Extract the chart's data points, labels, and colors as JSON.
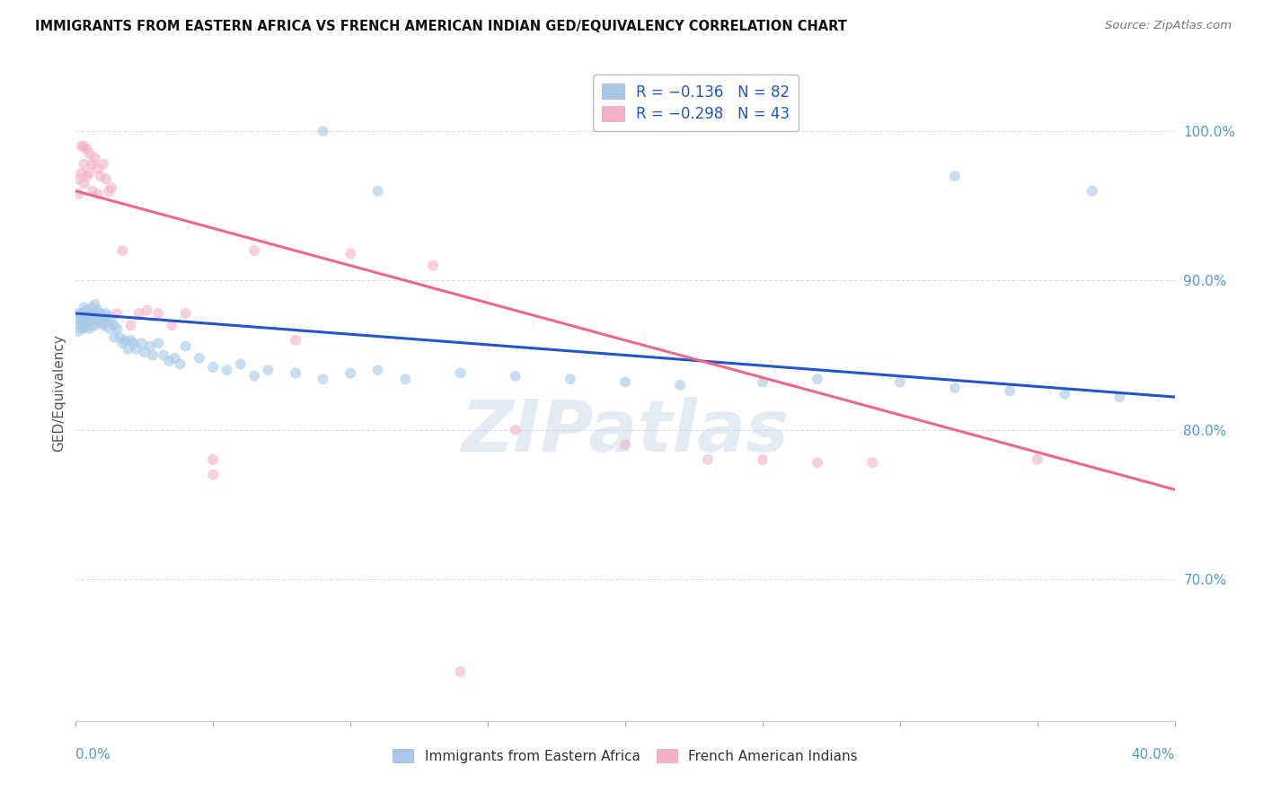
{
  "title": "IMMIGRANTS FROM EASTERN AFRICA VS FRENCH AMERICAN INDIAN GED/EQUIVALENCY CORRELATION CHART",
  "source": "Source: ZipAtlas.com",
  "ylabel": "GED/Equivalency",
  "ytick_values": [
    0.7,
    0.8,
    0.9,
    1.0
  ],
  "xlim": [
    0.0,
    0.4
  ],
  "ylim": [
    0.605,
    1.045
  ],
  "blue_color": "#a8c8e8",
  "pink_color": "#f4b0c8",
  "blue_line_color": "#2255cc",
  "pink_line_color": "#ee6688",
  "background_color": "#ffffff",
  "grid_color": "#ddddee",
  "blue_scatter_x": [
    0.001,
    0.001,
    0.001,
    0.001,
    0.002,
    0.002,
    0.002,
    0.002,
    0.003,
    0.003,
    0.003,
    0.003,
    0.004,
    0.004,
    0.004,
    0.005,
    0.005,
    0.005,
    0.006,
    0.006,
    0.006,
    0.007,
    0.007,
    0.007,
    0.008,
    0.008,
    0.009,
    0.009,
    0.01,
    0.01,
    0.011,
    0.011,
    0.012,
    0.012,
    0.013,
    0.014,
    0.014,
    0.015,
    0.016,
    0.017,
    0.018,
    0.019,
    0.02,
    0.021,
    0.022,
    0.024,
    0.025,
    0.027,
    0.028,
    0.03,
    0.032,
    0.034,
    0.036,
    0.038,
    0.04,
    0.045,
    0.05,
    0.055,
    0.06,
    0.065,
    0.07,
    0.08,
    0.09,
    0.1,
    0.11,
    0.12,
    0.14,
    0.16,
    0.18,
    0.2,
    0.22,
    0.25,
    0.27,
    0.3,
    0.32,
    0.34,
    0.36,
    0.38,
    0.32,
    0.37,
    0.09,
    0.11
  ],
  "blue_scatter_y": [
    0.878,
    0.874,
    0.87,
    0.866,
    0.878,
    0.876,
    0.872,
    0.868,
    0.882,
    0.876,
    0.872,
    0.868,
    0.88,
    0.876,
    0.87,
    0.878,
    0.874,
    0.868,
    0.882,
    0.876,
    0.87,
    0.884,
    0.878,
    0.87,
    0.88,
    0.874,
    0.878,
    0.872,
    0.876,
    0.87,
    0.878,
    0.872,
    0.876,
    0.868,
    0.874,
    0.87,
    0.862,
    0.868,
    0.862,
    0.858,
    0.86,
    0.854,
    0.86,
    0.858,
    0.854,
    0.858,
    0.852,
    0.856,
    0.85,
    0.858,
    0.85,
    0.846,
    0.848,
    0.844,
    0.856,
    0.848,
    0.842,
    0.84,
    0.844,
    0.836,
    0.84,
    0.838,
    0.834,
    0.838,
    0.84,
    0.834,
    0.838,
    0.836,
    0.834,
    0.832,
    0.83,
    0.832,
    0.834,
    0.832,
    0.828,
    0.826,
    0.824,
    0.822,
    0.97,
    0.96,
    1.0,
    0.96
  ],
  "pink_scatter_x": [
    0.001,
    0.001,
    0.002,
    0.002,
    0.003,
    0.003,
    0.003,
    0.004,
    0.004,
    0.005,
    0.005,
    0.006,
    0.006,
    0.007,
    0.008,
    0.008,
    0.009,
    0.01,
    0.011,
    0.012,
    0.013,
    0.015,
    0.017,
    0.02,
    0.023,
    0.026,
    0.03,
    0.035,
    0.04,
    0.05,
    0.065,
    0.08,
    0.1,
    0.13,
    0.16,
    0.2,
    0.23,
    0.25,
    0.27,
    0.29,
    0.14,
    0.35,
    0.05
  ],
  "pink_scatter_y": [
    0.968,
    0.958,
    0.99,
    0.972,
    0.99,
    0.978,
    0.965,
    0.988,
    0.97,
    0.985,
    0.972,
    0.978,
    0.96,
    0.982,
    0.975,
    0.958,
    0.97,
    0.978,
    0.968,
    0.96,
    0.962,
    0.878,
    0.92,
    0.87,
    0.878,
    0.88,
    0.878,
    0.87,
    0.878,
    0.78,
    0.92,
    0.86,
    0.918,
    0.91,
    0.8,
    0.79,
    0.78,
    0.78,
    0.778,
    0.778,
    0.638,
    0.78,
    0.77
  ],
  "blue_trend_x": [
    0.0,
    0.4
  ],
  "blue_trend_y": [
    0.878,
    0.822
  ],
  "pink_trend_x": [
    0.0,
    0.4
  ],
  "pink_trend_y": [
    0.96,
    0.76
  ],
  "watermark": "ZIPatlas",
  "marker_size": 75,
  "alpha": 0.6,
  "legend_r_blue": "R = −0.136",
  "legend_n_blue": "N = 82",
  "legend_r_pink": "R = −0.298",
  "legend_n_pink": "N = 43"
}
